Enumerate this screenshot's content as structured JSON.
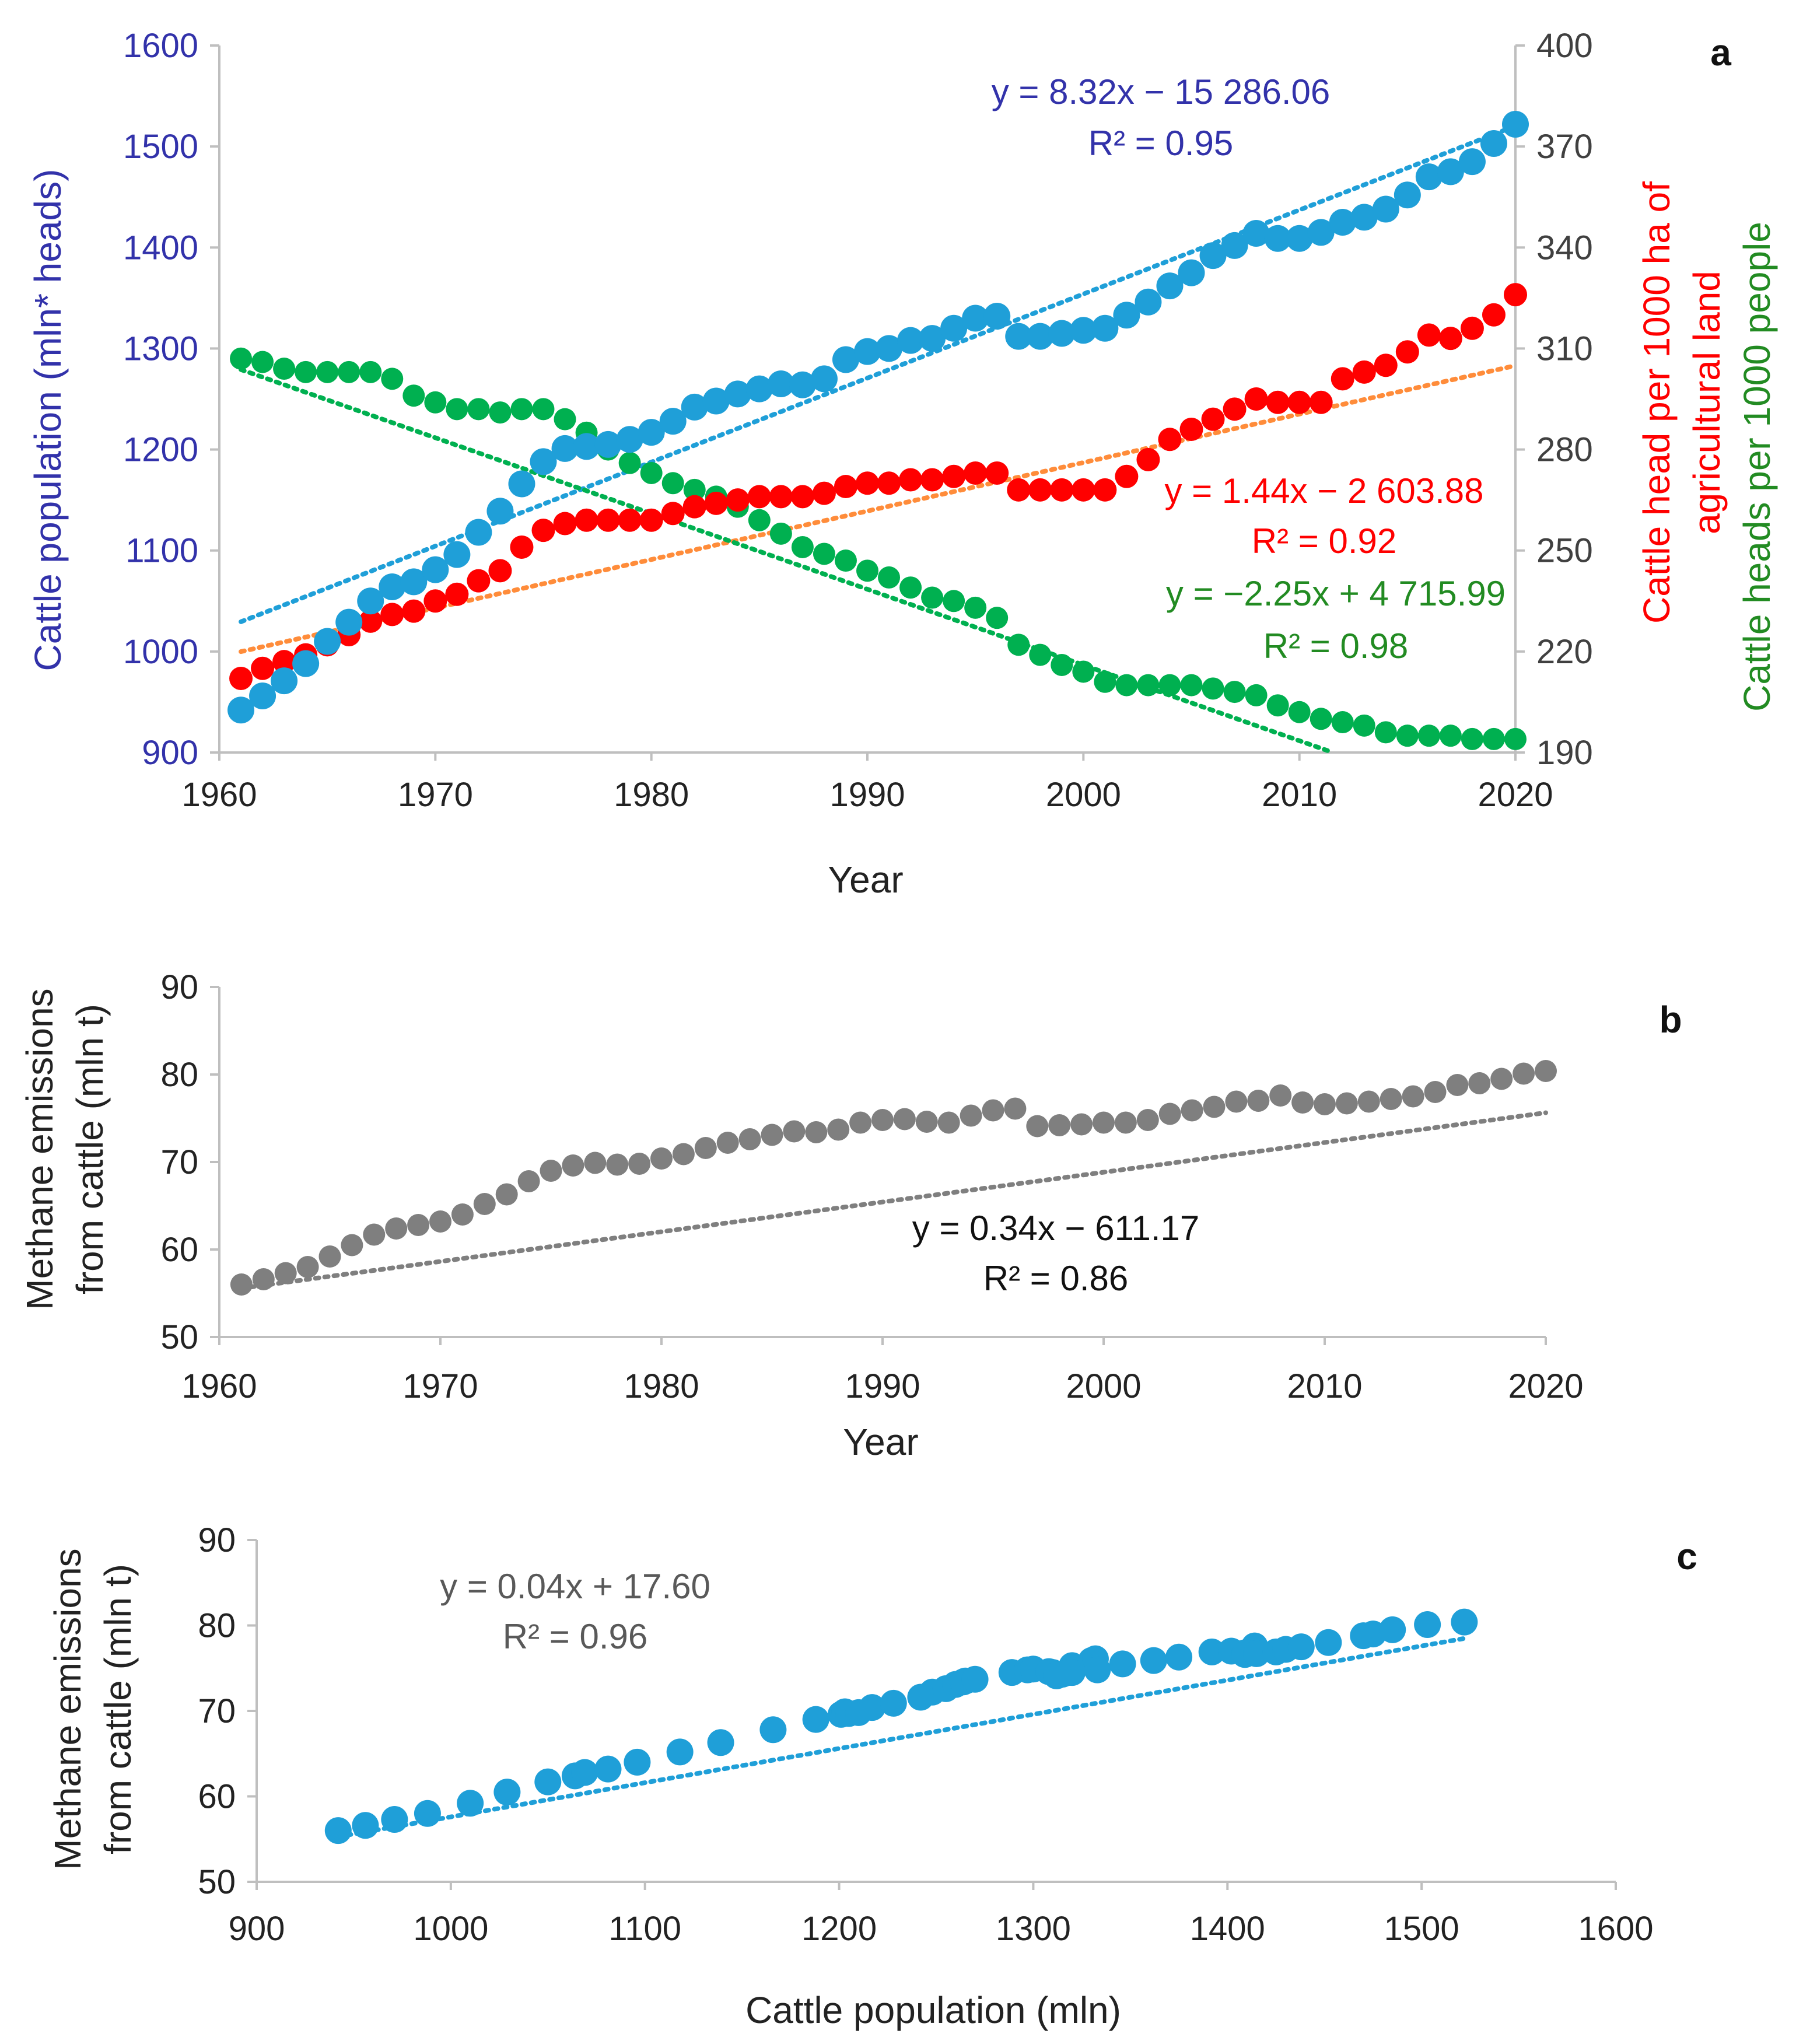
{
  "colors": {
    "blue_dots": "#1f9fd8",
    "blue_text": "#3232aa",
    "red": "#ff0000",
    "red_trend": "#ff8c3a",
    "green": "#00b050",
    "green_text": "#228b22",
    "gray": "#7f7f7f",
    "axis": "#bfbfbf",
    "text": "#222222"
  },
  "chart_data": [
    {
      "panel": "a",
      "type": "scatter",
      "panel_label": "a",
      "xlabel": "Year",
      "ylabel_left": "Cattle population (mln* heads)",
      "ylabel_right_1": "Cattle head per 1000 ha of",
      "ylabel_right_2": "agricultural land",
      "ylabel_right_3": "Cattle heads per 1000 people",
      "xlim": [
        1960,
        2020
      ],
      "ylim_left": [
        900,
        1600
      ],
      "ylim_right": [
        190,
        400
      ],
      "x_ticks": [
        "1960",
        "1970",
        "1980",
        "1990",
        "2000",
        "2010",
        "2020"
      ],
      "y_ticks_left": [
        "900",
        "1000",
        "1100",
        "1200",
        "1300",
        "1400",
        "1500",
        "1600"
      ],
      "y_ticks_right": [
        "190",
        "220",
        "250",
        "280",
        "310",
        "340",
        "370",
        "400"
      ],
      "years": [
        1961,
        1962,
        1963,
        1964,
        1965,
        1966,
        1967,
        1968,
        1969,
        1970,
        1971,
        1972,
        1973,
        1974,
        1975,
        1976,
        1977,
        1978,
        1979,
        1980,
        1981,
        1982,
        1983,
        1984,
        1985,
        1986,
        1987,
        1988,
        1989,
        1990,
        1991,
        1992,
        1993,
        1994,
        1995,
        1996,
        1997,
        1998,
        1999,
        2000,
        2001,
        2002,
        2003,
        2004,
        2005,
        2006,
        2007,
        2008,
        2009,
        2010,
        2011,
        2012,
        2013,
        2014,
        2015,
        2016,
        2017,
        2018,
        2019,
        2020
      ],
      "series": [
        {
          "name": "Cattle population",
          "axis": "left",
          "values": [
            942,
            956,
            971,
            988,
            1010,
            1029,
            1050,
            1064,
            1069,
            1081,
            1096,
            1118,
            1139,
            1166,
            1188,
            1201,
            1203,
            1205,
            1210,
            1217,
            1228,
            1242,
            1248,
            1255,
            1260,
            1265,
            1264,
            1270,
            1289,
            1297,
            1300,
            1308,
            1310,
            1320,
            1330,
            1332,
            1312,
            1312,
            1315,
            1318,
            1320,
            1333,
            1346,
            1362,
            1375,
            1392,
            1402,
            1414,
            1409,
            1409,
            1415,
            1425,
            1430,
            1438,
            1452,
            1470,
            1475,
            1485,
            1503,
            1522
          ],
          "trend": {
            "slope": 8.32,
            "intercept": -15286.06
          },
          "equation": "y = 8.32x − 15 286.06",
          "r2": "R² = 0.95"
        },
        {
          "name": "Cattle head per 1000 ha of agricultural land",
          "axis": "right",
          "values": [
            212,
            215,
            217,
            219,
            222,
            225,
            229,
            231,
            232,
            235,
            237,
            241,
            244,
            251,
            256,
            258,
            259,
            259,
            259,
            259,
            261,
            263,
            264,
            265,
            266,
            266,
            266,
            267,
            269,
            270,
            270,
            271,
            271,
            272,
            273,
            273,
            268,
            268,
            268,
            268,
            268,
            272,
            277,
            283,
            286,
            289,
            292,
            295,
            294,
            294,
            294,
            301,
            303,
            305,
            309,
            314,
            313,
            316,
            320,
            326
          ],
          "trend": {
            "slope": 1.44,
            "intercept": -2603.88
          },
          "equation": "y = 1.44x − 2 603.88",
          "r2": "R² = 0.92"
        },
        {
          "name": "Cattle heads per 1000 people",
          "axis": "right",
          "values": [
            307,
            306,
            304,
            303,
            303,
            303,
            303,
            301,
            296,
            294,
            292,
            292,
            291,
            292,
            292,
            289,
            285,
            280,
            276,
            273,
            270,
            268,
            266,
            263,
            259,
            255,
            251,
            249,
            247,
            244,
            242,
            239,
            236,
            235,
            233,
            230,
            222,
            219,
            216,
            214,
            211,
            210,
            210,
            210,
            210,
            209,
            208,
            207,
            204,
            202,
            200,
            199,
            198,
            196,
            195,
            195,
            195,
            194,
            194,
            194
          ],
          "trend": {
            "slope": -2.25,
            "intercept": 4715.99
          },
          "equation": "y = −2.25x + 4 715.99",
          "r2": "R² = 0.98"
        }
      ]
    },
    {
      "panel": "b",
      "type": "scatter",
      "panel_label": "b",
      "xlabel": "Year",
      "ylabel_1": "Methane emissions",
      "ylabel_2": "from cattle (mln t)",
      "xlim": [
        1960,
        2020
      ],
      "ylim": [
        50,
        90
      ],
      "x_ticks": [
        "1960",
        "1970",
        "1980",
        "1990",
        "2000",
        "2010",
        "2020"
      ],
      "y_ticks": [
        "50",
        "60",
        "70",
        "80",
        "90"
      ],
      "years": [
        1961,
        1962,
        1963,
        1964,
        1965,
        1966,
        1967,
        1968,
        1969,
        1970,
        1971,
        1972,
        1973,
        1974,
        1975,
        1976,
        1977,
        1978,
        1979,
        1980,
        1981,
        1982,
        1983,
        1984,
        1985,
        1986,
        1987,
        1988,
        1989,
        1990,
        1991,
        1992,
        1993,
        1994,
        1995,
        1996,
        1997,
        1998,
        1999,
        2000,
        2001,
        2002,
        2003,
        2004,
        2005,
        2006,
        2007,
        2008,
        2009,
        2010,
        2011,
        2012,
        2013,
        2014,
        2015,
        2016,
        2017,
        2018,
        2019,
        2020
      ],
      "values": [
        56.0,
        56.6,
        57.3,
        58.0,
        59.2,
        60.5,
        61.7,
        62.4,
        62.8,
        63.2,
        64.0,
        65.2,
        66.3,
        67.8,
        69.0,
        69.6,
        69.9,
        69.7,
        69.8,
        70.4,
        70.9,
        71.6,
        72.2,
        72.6,
        73.1,
        73.5,
        73.4,
        73.7,
        74.5,
        74.8,
        74.9,
        74.6,
        74.5,
        75.3,
        75.9,
        76.1,
        74.1,
        74.2,
        74.3,
        74.5,
        74.5,
        74.8,
        75.5,
        75.9,
        76.3,
        76.9,
        77.0,
        77.6,
        76.8,
        76.6,
        76.7,
        76.9,
        77.2,
        77.5,
        78.0,
        78.8,
        79.0,
        79.5,
        80.1,
        80.4
      ],
      "trend": {
        "slope": 0.34,
        "intercept": -611.17
      },
      "equation": "y = 0.34x − 611.17",
      "r2": "R² = 0.86"
    },
    {
      "panel": "c",
      "type": "scatter",
      "panel_label": "c",
      "xlabel": "Cattle population (mln)",
      "ylabel_1": "Methane emissions",
      "ylabel_2": "from cattle (mln t)",
      "xlim": [
        900,
        1600
      ],
      "ylim": [
        50,
        90
      ],
      "x_ticks": [
        "900",
        "1000",
        "1100",
        "1200",
        "1300",
        "1400",
        "1500",
        "1600"
      ],
      "y_ticks": [
        "50",
        "60",
        "70",
        "80",
        "90"
      ],
      "trend": {
        "slope": 0.04,
        "intercept": 17.6
      },
      "equation": "y = 0.04x + 17.60",
      "r2": "R² = 0.96"
    }
  ]
}
